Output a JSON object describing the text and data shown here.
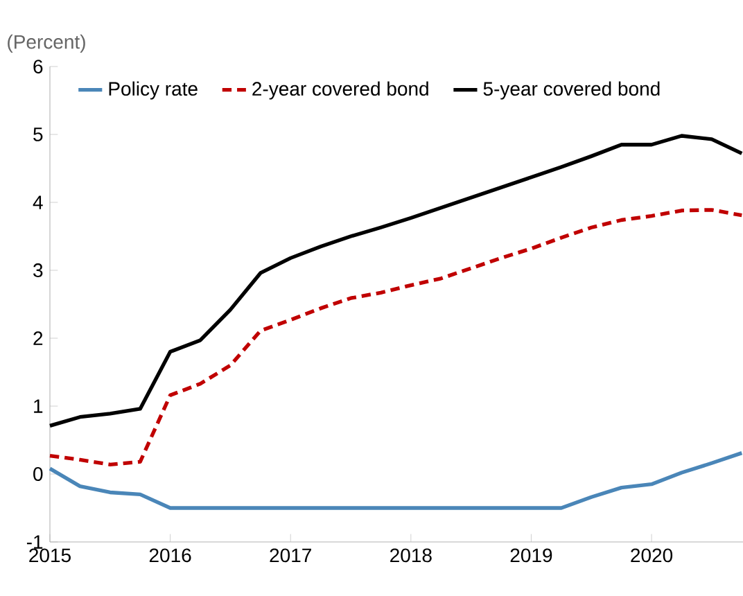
{
  "chart_data": {
    "type": "line",
    "ylabel": "(Percent)",
    "x": [
      2015.0,
      2015.25,
      2015.5,
      2015.75,
      2016.0,
      2016.25,
      2016.5,
      2016.75,
      2017.0,
      2017.25,
      2017.5,
      2017.75,
      2018.0,
      2018.25,
      2018.5,
      2018.75,
      2019.0,
      2019.25,
      2019.5,
      2019.75,
      2020.0,
      2020.25,
      2020.5,
      2020.75
    ],
    "series": [
      {
        "name": "Policy rate",
        "color": "#4a86b8",
        "line_style": "solid",
        "values": [
          0.08,
          -0.18,
          -0.27,
          -0.3,
          -0.5,
          -0.5,
          -0.5,
          -0.5,
          -0.5,
          -0.5,
          -0.5,
          -0.5,
          -0.5,
          -0.5,
          -0.5,
          -0.5,
          -0.5,
          -0.5,
          -0.34,
          -0.2,
          -0.15,
          0.02,
          0.16,
          0.31
        ]
      },
      {
        "name": "2-year covered bond",
        "color": "#c00000",
        "line_style": "dashed",
        "values": [
          0.27,
          0.21,
          0.14,
          0.18,
          1.16,
          1.33,
          1.6,
          2.11,
          2.27,
          2.44,
          2.59,
          2.67,
          2.78,
          2.88,
          3.03,
          3.18,
          3.32,
          3.48,
          3.63,
          3.74,
          3.8,
          3.88,
          3.89,
          3.81
        ]
      },
      {
        "name": "5-year covered bond",
        "color": "#000000",
        "line_style": "solid",
        "values": [
          0.71,
          0.84,
          0.89,
          0.96,
          1.8,
          1.97,
          2.42,
          2.96,
          3.18,
          3.35,
          3.5,
          3.63,
          3.77,
          3.92,
          4.07,
          4.22,
          4.37,
          4.52,
          4.68,
          4.85,
          4.85,
          4.98,
          4.93,
          4.72
        ]
      }
    ],
    "xlim": [
      2015,
      2020.76
    ],
    "xticks": [
      2015,
      2016,
      2017,
      2018,
      2019,
      2020
    ],
    "ylim": [
      -1,
      6
    ],
    "yticks": [
      -1,
      0,
      1,
      2,
      3,
      4,
      5,
      6
    ],
    "grid": false,
    "legend": "top"
  }
}
